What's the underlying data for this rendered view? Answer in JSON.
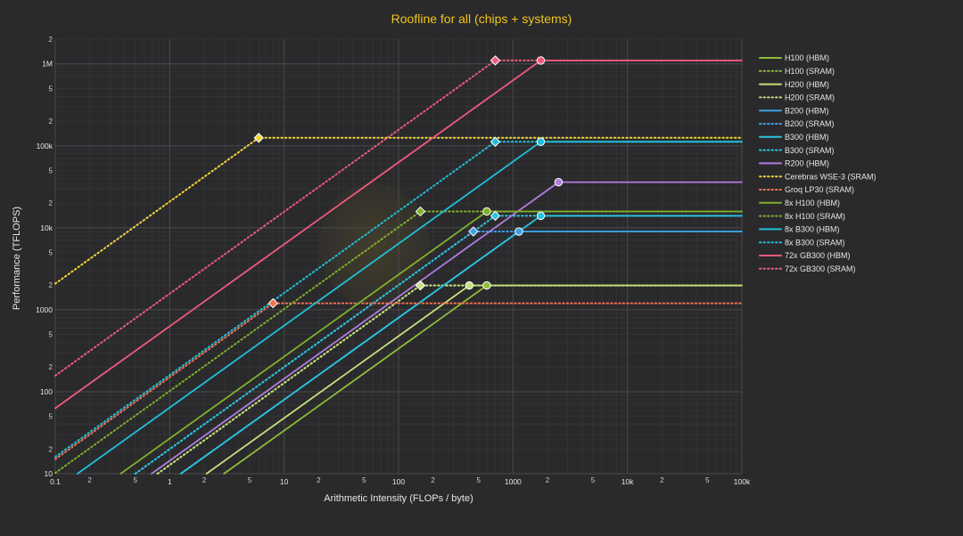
{
  "chart_data": {
    "type": "line",
    "title": "Roofline for all (chips + systems)",
    "xlabel": "Arithmetic Intensity (FLOPs / byte)",
    "ylabel": "Performance (TFLOPS)",
    "xscale": "log",
    "yscale": "log",
    "xlim": [
      0.1,
      100000
    ],
    "ylim": [
      10,
      2000000
    ],
    "grid": true,
    "legend_position": "right",
    "x_major_ticks": [
      {
        "v": 0.1,
        "label": "0.1"
      },
      {
        "v": 1,
        "label": "1"
      },
      {
        "v": 10,
        "label": "10"
      },
      {
        "v": 100,
        "label": "100"
      },
      {
        "v": 1000,
        "label": "1000"
      },
      {
        "v": 10000,
        "label": "10k"
      },
      {
        "v": 100000,
        "label": "100k"
      }
    ],
    "y_major_ticks": [
      {
        "v": 10,
        "label": "10"
      },
      {
        "v": 100,
        "label": "100"
      },
      {
        "v": 1000,
        "label": "1000"
      },
      {
        "v": 10000,
        "label": "10k"
      },
      {
        "v": 100000,
        "label": "100k"
      },
      {
        "v": 1000000,
        "label": "1M"
      }
    ],
    "minor_tick_labels": [
      "2",
      "5"
    ],
    "series": [
      {
        "name": "H100 (HBM)",
        "color": "#8fbc3a",
        "dash": "solid",
        "ridge_x": 590,
        "peak": 1979
      },
      {
        "name": "H100 (SRAM)",
        "color": "#8fbc3a",
        "dash": "dot",
        "ridge_x": 155,
        "peak": 1979
      },
      {
        "name": "H200 (HBM)",
        "color": "#c5e07a",
        "dash": "solid",
        "ridge_x": 415,
        "peak": 1979
      },
      {
        "name": "H200 (SRAM)",
        "color": "#c5e07a",
        "dash": "dot",
        "ridge_x": 155,
        "peak": 1979
      },
      {
        "name": "B200 (HBM)",
        "color": "#3ba0e6",
        "dash": "solid",
        "ridge_x": 1125,
        "peak": 9000
      },
      {
        "name": "B200 (SRAM)",
        "color": "#3ba0e6",
        "dash": "dot",
        "ridge_x": 450,
        "peak": 9000
      },
      {
        "name": "B300 (HBM)",
        "color": "#29c4e0",
        "dash": "solid",
        "ridge_x": 1750,
        "peak": 14000
      },
      {
        "name": "B300 (SRAM)",
        "color": "#29c4e0",
        "dash": "dot",
        "ridge_x": 700,
        "peak": 14000
      },
      {
        "name": "R200 (HBM)",
        "color": "#b07ce0",
        "dash": "solid",
        "ridge_x": 2500,
        "peak": 36000
      },
      {
        "name": "Cerebras WSE-3 (SRAM)",
        "color": "#f0d43a",
        "dash": "dot",
        "ridge_x": 6,
        "peak": 125000
      },
      {
        "name": "Groq LP30 (SRAM)",
        "color": "#f07050",
        "dash": "dot",
        "ridge_x": 8,
        "peak": 1200
      },
      {
        "name": "8x H100 (HBM)",
        "color": "#7fb02a",
        "dash": "solid",
        "ridge_x": 590,
        "peak": 15832
      },
      {
        "name": "8x H100 (SRAM)",
        "color": "#7fb02a",
        "dash": "dot",
        "ridge_x": 155,
        "peak": 15832
      },
      {
        "name": "8x B300 (HBM)",
        "color": "#1fbfd8",
        "dash": "solid",
        "ridge_x": 1750,
        "peak": 112000
      },
      {
        "name": "8x B300 (SRAM)",
        "color": "#1fbfd8",
        "dash": "dot",
        "ridge_x": 700,
        "peak": 112000
      },
      {
        "name": "72x GB300 (HBM)",
        "color": "#ef5a7a",
        "dash": "solid",
        "ridge_x": 1750,
        "peak": 1100000
      },
      {
        "name": "72x GB300 (SRAM)",
        "color": "#ef5a7a",
        "dash": "dot",
        "ridge_x": 700,
        "peak": 1100000
      }
    ]
  }
}
